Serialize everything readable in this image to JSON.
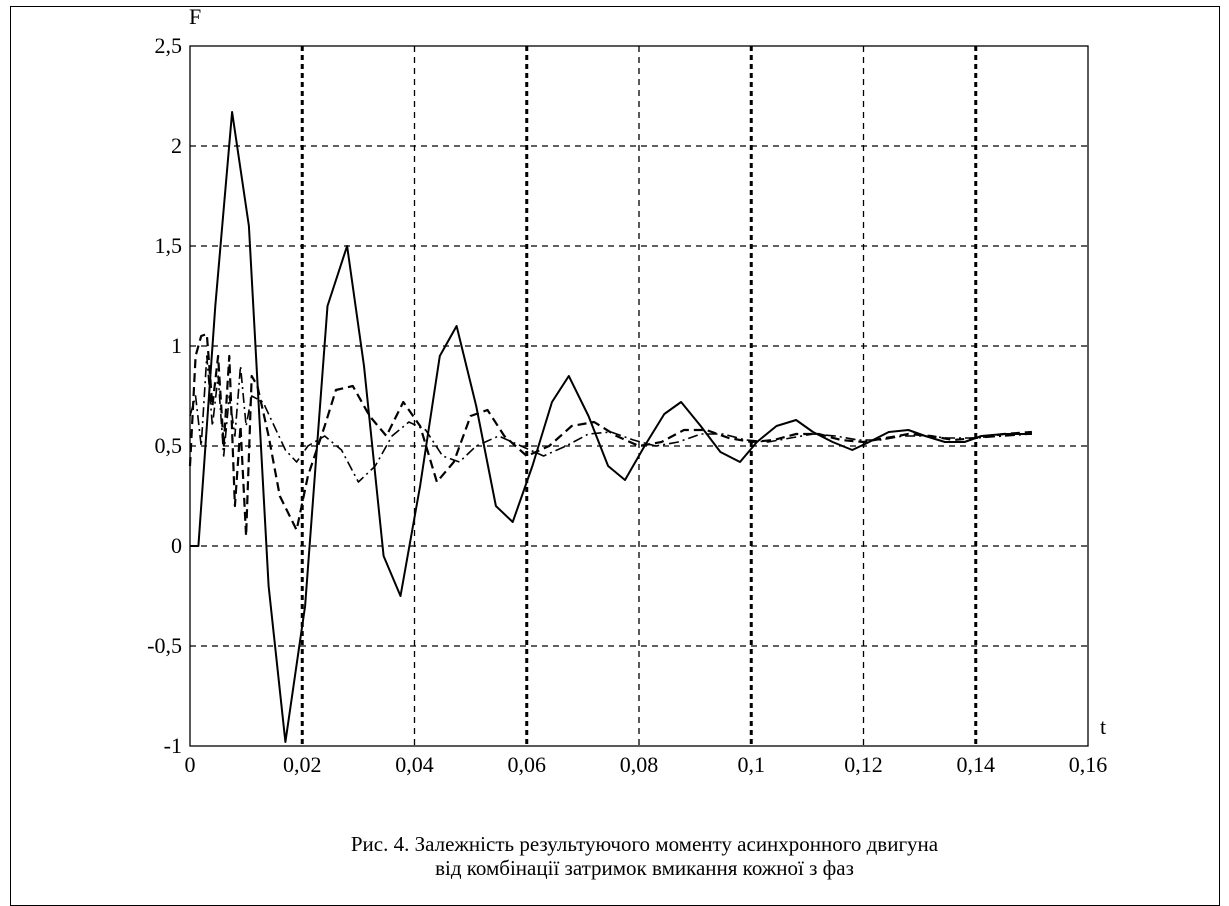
{
  "chart_data": {
    "type": "line",
    "ylabel": "F",
    "xlabel": "t",
    "xlim": [
      0,
      0.16
    ],
    "ylim": [
      -1,
      2.5
    ],
    "x_ticks": [
      "0",
      "0,02",
      "0,04",
      "0,06",
      "0,08",
      "0,1",
      "0,12",
      "0,14",
      "0,16"
    ],
    "y_ticks": [
      "-1",
      "-0,5",
      "0",
      "0,5",
      "1",
      "1,5",
      "2",
      "2,5"
    ],
    "grid": true,
    "series": [
      {
        "style": "solid",
        "x": [
          0,
          0.0015,
          0.0045,
          0.0075,
          0.0105,
          0.014,
          0.017,
          0.0205,
          0.0245,
          0.028,
          0.031,
          0.0345,
          0.0375,
          0.041,
          0.0445,
          0.0475,
          0.051,
          0.0545,
          0.0575,
          0.061,
          0.0645,
          0.0675,
          0.071,
          0.0745,
          0.0775,
          0.081,
          0.0845,
          0.0875,
          0.091,
          0.0945,
          0.098,
          0.101,
          0.1045,
          0.108,
          0.111,
          0.1145,
          0.118,
          0.121,
          0.1245,
          0.128,
          0.131,
          0.1345,
          0.138,
          0.141,
          0.145,
          0.15
        ],
        "y": [
          0,
          0,
          1.2,
          2.17,
          1.6,
          -0.2,
          -0.98,
          -0.3,
          1.2,
          1.5,
          0.9,
          -0.05,
          -0.25,
          0.3,
          0.95,
          1.1,
          0.7,
          0.2,
          0.12,
          0.4,
          0.72,
          0.85,
          0.65,
          0.4,
          0.33,
          0.5,
          0.66,
          0.72,
          0.6,
          0.47,
          0.42,
          0.52,
          0.6,
          0.63,
          0.57,
          0.52,
          0.48,
          0.52,
          0.57,
          0.58,
          0.55,
          0.52,
          0.52,
          0.55,
          0.56,
          0.56
        ]
      },
      {
        "style": "dashed",
        "x": [
          0,
          0.001,
          0.002,
          0.003,
          0.004,
          0.005,
          0.006,
          0.007,
          0.008,
          0.009,
          0.01,
          0.011,
          0.012,
          0.014,
          0.016,
          0.019,
          0.021,
          0.024,
          0.026,
          0.029,
          0.032,
          0.035,
          0.038,
          0.041,
          0.044,
          0.047,
          0.05,
          0.053,
          0.056,
          0.06,
          0.064,
          0.068,
          0.072,
          0.076,
          0.08,
          0.084,
          0.088,
          0.092,
          0.096,
          0.1,
          0.104,
          0.108,
          0.112,
          0.116,
          0.12,
          0.124,
          0.128,
          0.132,
          0.136,
          0.14,
          0.145,
          0.15
        ],
        "y": [
          0.4,
          0.95,
          1.05,
          1.06,
          0.7,
          0.95,
          0.5,
          0.95,
          0.2,
          0.6,
          0.05,
          0.85,
          0.8,
          0.55,
          0.25,
          0.08,
          0.35,
          0.6,
          0.78,
          0.8,
          0.65,
          0.55,
          0.72,
          0.6,
          0.32,
          0.42,
          0.65,
          0.68,
          0.55,
          0.45,
          0.5,
          0.6,
          0.62,
          0.55,
          0.5,
          0.52,
          0.58,
          0.58,
          0.54,
          0.52,
          0.53,
          0.56,
          0.56,
          0.53,
          0.52,
          0.54,
          0.56,
          0.55,
          0.53,
          0.54,
          0.56,
          0.57
        ]
      },
      {
        "style": "dash-dot",
        "x": [
          0,
          0.001,
          0.002,
          0.003,
          0.004,
          0.005,
          0.006,
          0.007,
          0.008,
          0.009,
          0.01,
          0.011,
          0.013,
          0.015,
          0.017,
          0.019,
          0.021,
          0.024,
          0.027,
          0.03,
          0.033,
          0.036,
          0.039,
          0.042,
          0.045,
          0.048,
          0.051,
          0.055,
          0.059,
          0.063,
          0.067,
          0.071,
          0.075,
          0.079,
          0.083,
          0.087,
          0.091,
          0.095,
          0.099,
          0.103,
          0.107,
          0.111,
          0.115,
          0.119,
          0.123,
          0.127,
          0.131,
          0.135,
          0.14,
          0.145,
          0.15
        ],
        "y": [
          0.65,
          0.75,
          0.5,
          0.95,
          0.6,
          0.85,
          0.45,
          0.75,
          0.55,
          0.9,
          0.6,
          0.75,
          0.72,
          0.6,
          0.48,
          0.42,
          0.5,
          0.55,
          0.48,
          0.32,
          0.4,
          0.55,
          0.62,
          0.58,
          0.45,
          0.42,
          0.5,
          0.55,
          0.5,
          0.45,
          0.5,
          0.56,
          0.57,
          0.53,
          0.5,
          0.52,
          0.56,
          0.56,
          0.53,
          0.52,
          0.54,
          0.56,
          0.55,
          0.53,
          0.53,
          0.55,
          0.55,
          0.54,
          0.54,
          0.55,
          0.56
        ]
      }
    ]
  },
  "caption": {
    "line1": "Рис. 4. Залежність результуючого моменту асинхронного двигуна",
    "line2": "від комбінації затримок вмикання кожної з фаз"
  }
}
